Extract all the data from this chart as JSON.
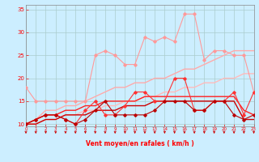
{
  "x": [
    0,
    1,
    2,
    3,
    4,
    5,
    6,
    7,
    8,
    9,
    10,
    11,
    12,
    13,
    14,
    15,
    16,
    17,
    18,
    19,
    20,
    21,
    22,
    23
  ],
  "series": [
    {
      "name": "pink_jagged",
      "color": "#ff9999",
      "lw": 0.8,
      "marker": "D",
      "ms": 1.8,
      "values": [
        18,
        15,
        15,
        15,
        15,
        15,
        15,
        25,
        26,
        25,
        23,
        23,
        29,
        28,
        29,
        28,
        34,
        34,
        24,
        26,
        26,
        25,
        25,
        17
      ]
    },
    {
      "name": "pink_upper_band",
      "color": "#ffaaaa",
      "lw": 1.0,
      "marker": null,
      "ms": 0,
      "values": [
        10,
        11,
        13,
        13,
        14,
        14,
        15,
        16,
        17,
        18,
        18,
        19,
        19,
        20,
        20,
        21,
        22,
        22,
        23,
        24,
        25,
        26,
        26,
        26
      ]
    },
    {
      "name": "pink_lower_band",
      "color": "#ffbbbb",
      "lw": 1.0,
      "marker": null,
      "ms": 0,
      "values": [
        10,
        10,
        11,
        11,
        12,
        12,
        13,
        13,
        14,
        14,
        15,
        15,
        16,
        16,
        17,
        17,
        18,
        18,
        19,
        19,
        20,
        20,
        21,
        21
      ]
    },
    {
      "name": "red_jagged",
      "color": "#ff3333",
      "lw": 0.8,
      "marker": "D",
      "ms": 1.8,
      "values": [
        10,
        11,
        12,
        12,
        11,
        10,
        13,
        15,
        12,
        12,
        14,
        17,
        17,
        15,
        15,
        20,
        20,
        13,
        13,
        15,
        15,
        17,
        12,
        17
      ]
    },
    {
      "name": "red_upper_line",
      "color": "#ff2222",
      "lw": 1.0,
      "marker": null,
      "ms": 0,
      "values": [
        10,
        11,
        12,
        12,
        13,
        13,
        14,
        14,
        15,
        15,
        15,
        15,
        16,
        16,
        16,
        16,
        16,
        16,
        16,
        16,
        16,
        16,
        13,
        12
      ]
    },
    {
      "name": "red_lower_line",
      "color": "#cc0000",
      "lw": 1.0,
      "marker": null,
      "ms": 0,
      "values": [
        10,
        10,
        11,
        11,
        12,
        12,
        12,
        13,
        13,
        13,
        14,
        14,
        14,
        15,
        15,
        15,
        15,
        15,
        15,
        15,
        15,
        15,
        11,
        11
      ]
    },
    {
      "name": "dark_red_jagged",
      "color": "#bb0000",
      "lw": 0.8,
      "marker": "D",
      "ms": 1.8,
      "values": [
        10,
        11,
        12,
        12,
        11,
        10,
        11,
        13,
        15,
        12,
        12,
        12,
        12,
        13,
        15,
        15,
        15,
        13,
        13,
        15,
        15,
        12,
        11,
        12
      ]
    }
  ],
  "xlim": [
    0,
    23
  ],
  "ylim": [
    9.5,
    36
  ],
  "yticks": [
    10,
    15,
    20,
    25,
    30,
    35
  ],
  "xticks": [
    0,
    1,
    2,
    3,
    4,
    5,
    6,
    7,
    8,
    9,
    10,
    11,
    12,
    13,
    14,
    15,
    16,
    17,
    18,
    19,
    20,
    21,
    22,
    23
  ],
  "xlabel": "Vent moyen/en rafales ( km/h )",
  "bg_color": "#cceeff",
  "grid_color": "#aacccc",
  "tick_color": "#ff0000",
  "label_color": "#ff0000",
  "arrow_color": "#cc0000"
}
